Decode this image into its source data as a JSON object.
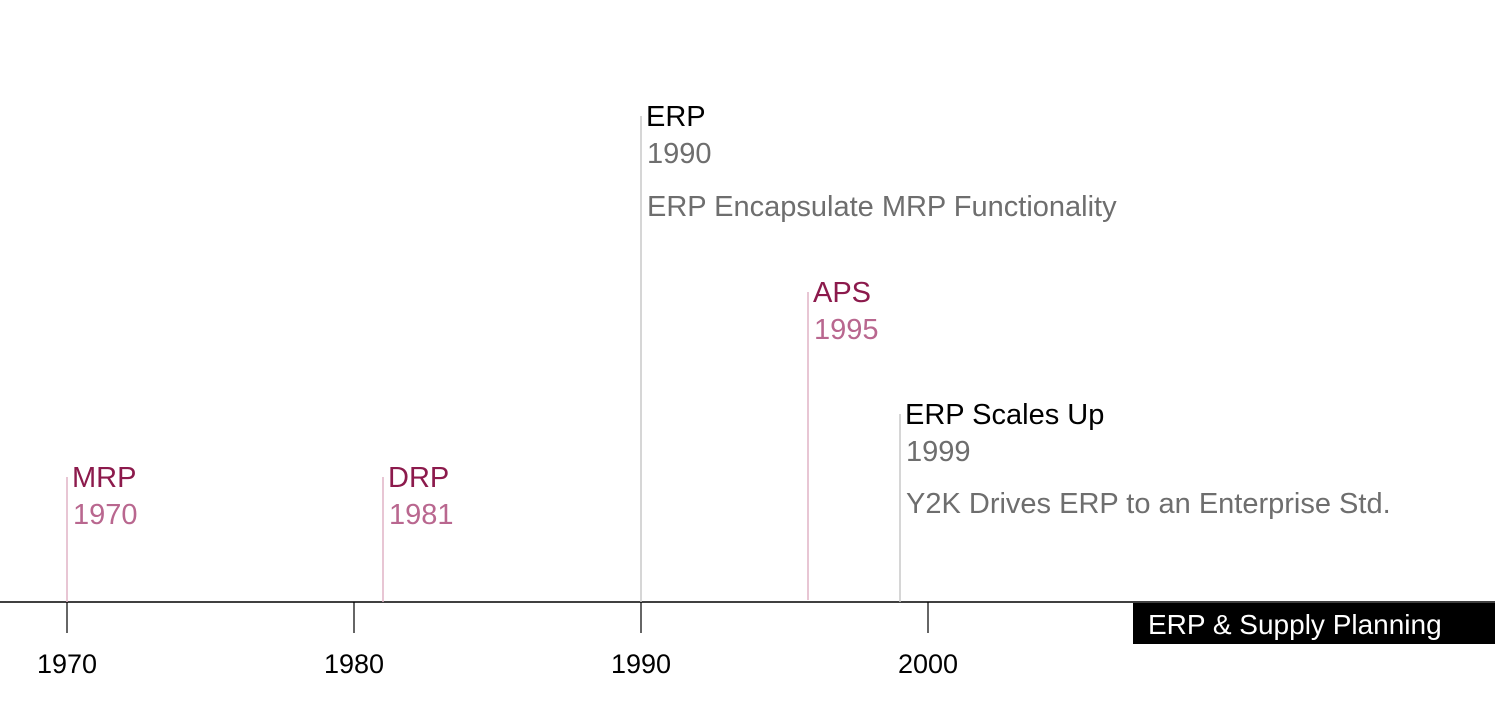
{
  "timeline": {
    "badge": "ERP & Supply Planning",
    "axis": {
      "ticks": [
        "1970",
        "1980",
        "1990",
        "2000"
      ]
    },
    "events": [
      {
        "title": "MRP",
        "year": "1970",
        "description": "",
        "style": "accent"
      },
      {
        "title": "DRP",
        "year": "1981",
        "description": "",
        "style": "accent"
      },
      {
        "title": "ERP",
        "year": "1990",
        "description": "ERP Encapsulate MRP Functionality",
        "style": "neutral"
      },
      {
        "title": "APS",
        "year": "1995",
        "description": "",
        "style": "accent"
      },
      {
        "title": "ERP Scales Up",
        "year": "1999",
        "description": "Y2K Drives ERP to an Enterprise Std.",
        "style": "neutral"
      }
    ]
  },
  "colors": {
    "accent_title": "#8c1a4c",
    "accent_year": "#b9678f",
    "accent_stem": "#e0b3c6",
    "neutral_title": "#000000",
    "neutral_year": "#6e6e6e",
    "neutral_stem": "#c9c9c9",
    "axis": "#000000",
    "badge_bg": "#000000"
  }
}
